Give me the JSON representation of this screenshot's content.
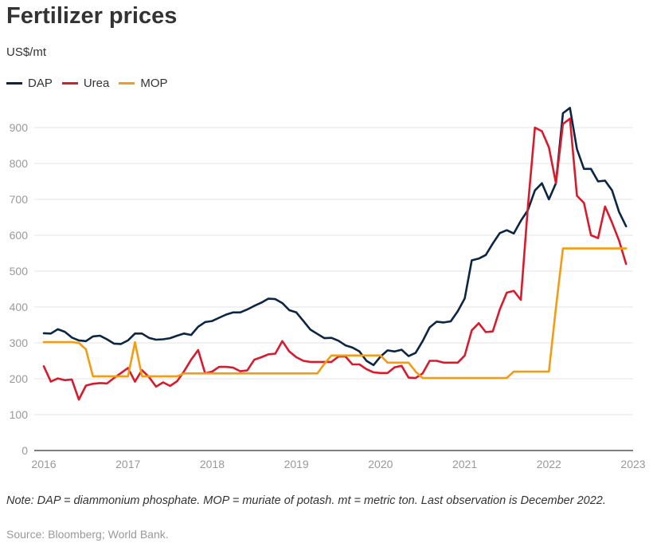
{
  "title": "Fertilizer prices",
  "subtitle": "US$/mt",
  "note": "Note: DAP = diammonium phosphate. MOP = muriate of potash. mt = metric ton. Last observation is December 2022.",
  "source": "Source: Bloomberg; World Bank.",
  "chart_data": {
    "type": "line",
    "title": "Fertilizer prices",
    "ylabel": "US$/mt",
    "xlabel": "",
    "frequency": "monthly",
    "x_start": "2016-01",
    "x_end": "2022-12",
    "xlim": [
      2016,
      2023
    ],
    "ylim": [
      0,
      900
    ],
    "x_ticks": [
      "2016",
      "2017",
      "2018",
      "2019",
      "2020",
      "2021",
      "2022",
      "2023"
    ],
    "y_ticks": [
      "0",
      "100",
      "200",
      "300",
      "400",
      "500",
      "600",
      "700",
      "800",
      "900"
    ],
    "grid": true,
    "legend": "top-left",
    "series": [
      {
        "name": "DAP",
        "color": "#0b2545",
        "values": [
          327,
          326,
          338,
          331,
          315,
          307,
          305,
          318,
          320,
          310,
          298,
          297,
          307,
          326,
          326,
          314,
          309,
          310,
          313,
          320,
          326,
          322,
          345,
          358,
          361,
          370,
          379,
          385,
          385,
          393,
          403,
          412,
          423,
          422,
          411,
          391,
          385,
          361,
          337,
          325,
          313,
          314,
          306,
          293,
          287,
          276,
          250,
          238,
          262,
          279,
          276,
          281,
          263,
          272,
          305,
          343,
          359,
          357,
          360,
          388,
          424,
          530,
          535,
          545,
          577,
          606,
          614,
          605,
          640,
          670,
          725,
          745,
          700,
          745,
          940,
          955,
          840,
          785,
          785,
          750,
          752,
          725,
          665,
          625
        ]
      },
      {
        "name": "Urea",
        "color": "#d81b2c",
        "values": [
          235,
          192,
          201,
          196,
          198,
          142,
          181,
          186,
          188,
          187,
          202,
          216,
          230,
          192,
          224,
          205,
          178,
          190,
          180,
          193,
          221,
          253,
          280,
          215,
          220,
          233,
          233,
          231,
          221,
          223,
          253,
          260,
          268,
          270,
          305,
          276,
          260,
          250,
          247,
          247,
          247,
          247,
          262,
          262,
          240,
          240,
          227,
          218,
          216,
          216,
          232,
          236,
          203,
          202,
          215,
          250,
          250,
          245,
          245,
          245,
          265,
          335,
          355,
          330,
          332,
          393,
          440,
          445,
          420,
          680,
          900,
          890,
          845,
          745,
          910,
          925,
          710,
          690,
          600,
          592,
          680,
          635,
          585,
          520
        ]
      },
      {
        "name": "MOP",
        "color": "#f39c12",
        "values": [
          302,
          302,
          302,
          302,
          302,
          300,
          282,
          207,
          207,
          207,
          207,
          207,
          207,
          302,
          207,
          207,
          207,
          207,
          207,
          207,
          215,
          215,
          215,
          215,
          215,
          215,
          215,
          215,
          215,
          215,
          215,
          215,
          215,
          215,
          215,
          215,
          215,
          215,
          215,
          215,
          242,
          265,
          265,
          265,
          265,
          265,
          265,
          265,
          265,
          245,
          245,
          245,
          245,
          220,
          202,
          202,
          202,
          202,
          202,
          202,
          202,
          202,
          202,
          202,
          202,
          202,
          202,
          220,
          220,
          220,
          220,
          220,
          220,
          398,
          563,
          563,
          563,
          563,
          563,
          563,
          563,
          563,
          563,
          563
        ]
      }
    ]
  }
}
